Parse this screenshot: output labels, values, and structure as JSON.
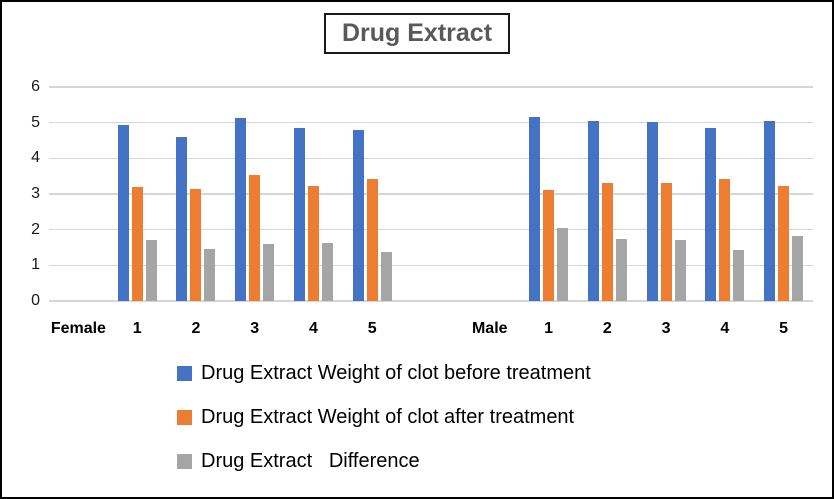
{
  "title": "Drug Extract",
  "chart_data": {
    "type": "bar",
    "title": "Drug Extract",
    "xlabel": "",
    "ylabel": "",
    "ylim": [
      0,
      6
    ],
    "y_ticks": [
      0,
      1,
      2,
      3,
      4,
      5,
      6
    ],
    "grid": true,
    "legend_position": "bottom-left",
    "categories": [
      "Female",
      "1",
      "2",
      "3",
      "4",
      "5",
      "",
      "Male",
      "1",
      "2",
      "3",
      "4",
      "5"
    ],
    "series": [
      {
        "name": "Drug Extract Weight of clot before treatment",
        "color": "#4472C4",
        "values": [
          null,
          4.93,
          4.59,
          5.13,
          4.85,
          4.8,
          null,
          null,
          5.17,
          5.04,
          5.03,
          4.84,
          5.05
        ]
      },
      {
        "name": "Drug Extract Weight of clot after treatment",
        "color": "#ED7D31",
        "values": [
          null,
          3.21,
          3.13,
          3.53,
          3.22,
          3.42,
          null,
          null,
          3.12,
          3.31,
          3.32,
          3.42,
          3.22
        ]
      },
      {
        "name": "Drug Extract   Difference",
        "color": "#A5A5A5",
        "values": [
          null,
          1.72,
          1.46,
          1.6,
          1.63,
          1.38,
          null,
          null,
          2.05,
          1.73,
          1.71,
          1.42,
          1.83
        ]
      }
    ]
  },
  "legend": {
    "items": [
      {
        "label": "Drug Extract Weight of clot before treatment",
        "color": "#4472C4"
      },
      {
        "label": "Drug Extract Weight of clot after treatment",
        "color": "#ED7D31"
      },
      {
        "label": "Drug Extract   Difference",
        "color": "#A5A5A5"
      }
    ]
  },
  "colors": {
    "grid": "#d6d6d6",
    "title_text": "#595959",
    "frame_border": "#000000"
  }
}
